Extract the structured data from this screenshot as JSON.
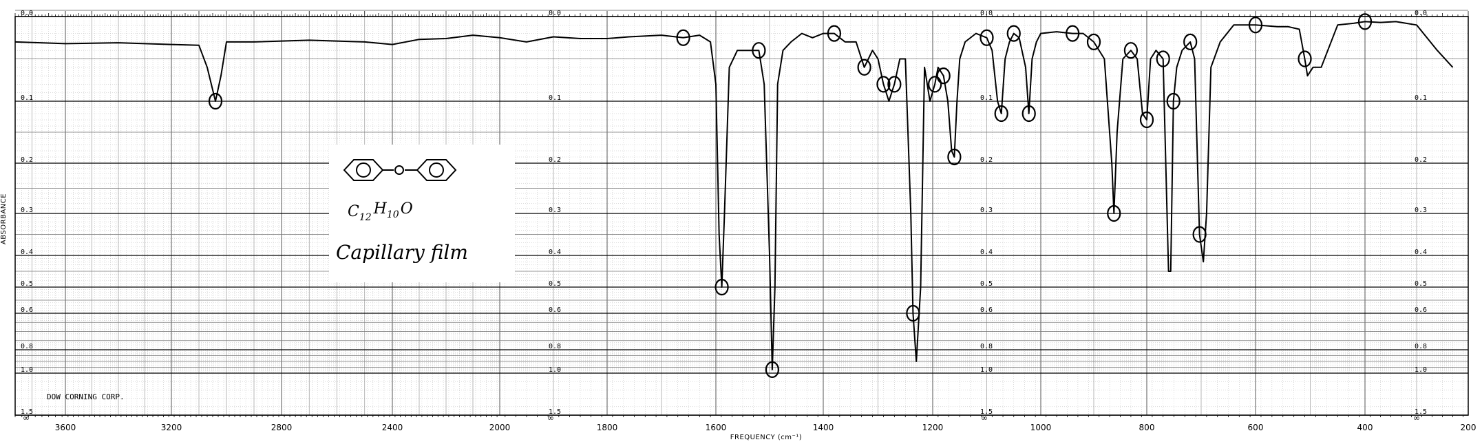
{
  "chart_data": {
    "type": "line",
    "title": "",
    "xlabel": "FREQUENCY (cm⁻¹)",
    "ylabel": "ABSORBANCE",
    "xlim": [
      3750,
      200
    ],
    "ylim": [
      0.0,
      1.5
    ],
    "x_ticks": [
      3600,
      3200,
      2800,
      2400,
      2000,
      1800,
      1600,
      1400,
      1200,
      1000,
      800,
      600,
      400,
      200
    ],
    "x_tick_labels": [
      "3600",
      "3200",
      "2800",
      "2400",
      "2000",
      "1800",
      "1600",
      "1400",
      "1200",
      "1000",
      "800",
      "600",
      "400",
      "200"
    ],
    "y_ticks": [
      0.0,
      0.1,
      0.2,
      0.3,
      0.4,
      0.5,
      0.6,
      0.8,
      1.0,
      1.5
    ],
    "y_tick_labels": [
      "0.0",
      "0.1",
      "0.2",
      "0.3",
      "0.4",
      "0.5",
      "0.6",
      "0.8",
      "1.0",
      "1.5"
    ],
    "grid": true,
    "series": [
      {
        "name": "",
        "x": [
          3750,
          3600,
          3400,
          3200,
          3100,
          3070,
          3040,
          3020,
          3000,
          2900,
          2700,
          2500,
          2400,
          2300,
          2200,
          2100,
          2000,
          1950,
          1900,
          1850,
          1800,
          1760,
          1700,
          1660,
          1630,
          1610,
          1600,
          1594,
          1589,
          1584,
          1575,
          1560,
          1520,
          1510,
          1500,
          1495,
          1490,
          1485,
          1475,
          1460,
          1440,
          1420,
          1400,
          1380,
          1360,
          1340,
          1325,
          1310,
          1300,
          1290,
          1280,
          1270,
          1260,
          1250,
          1240,
          1236,
          1230,
          1222,
          1215,
          1205,
          1196,
          1190,
          1180,
          1172,
          1165,
          1160,
          1155,
          1150,
          1140,
          1120,
          1100,
          1090,
          1080,
          1073,
          1066,
          1058,
          1050,
          1040,
          1028,
          1022,
          1016,
          1008,
          1000,
          970,
          940,
          920,
          900,
          880,
          866,
          862,
          856,
          845,
          830,
          818,
          808,
          800,
          793,
          783,
          770,
          760,
          756,
          751,
          745,
          735,
          720,
          712,
          703,
          696,
          690,
          682,
          665,
          640,
          600,
          560,
          540,
          520,
          510,
          505,
          495,
          480,
          450,
          420,
          400,
          370,
          340,
          300,
          260,
          230
        ],
        "y": [
          0.03,
          0.032,
          0.031,
          0.033,
          0.034,
          0.06,
          0.1,
          0.07,
          0.03,
          0.03,
          0.028,
          0.03,
          0.033,
          0.027,
          0.026,
          0.022,
          0.025,
          0.03,
          0.024,
          0.026,
          0.026,
          0.024,
          0.022,
          0.025,
          0.022,
          0.03,
          0.08,
          0.35,
          0.5,
          0.3,
          0.06,
          0.04,
          0.04,
          0.08,
          0.4,
          0.97,
          0.5,
          0.08,
          0.04,
          0.03,
          0.02,
          0.025,
          0.02,
          0.02,
          0.03,
          0.03,
          0.06,
          0.04,
          0.05,
          0.08,
          0.1,
          0.08,
          0.05,
          0.05,
          0.3,
          0.6,
          0.9,
          0.5,
          0.06,
          0.1,
          0.08,
          0.06,
          0.07,
          0.1,
          0.18,
          0.19,
          0.1,
          0.05,
          0.03,
          0.02,
          0.025,
          0.04,
          0.1,
          0.12,
          0.05,
          0.03,
          0.02,
          0.025,
          0.06,
          0.12,
          0.05,
          0.03,
          0.02,
          0.018,
          0.02,
          0.02,
          0.03,
          0.05,
          0.2,
          0.3,
          0.15,
          0.05,
          0.04,
          0.05,
          0.12,
          0.13,
          0.05,
          0.04,
          0.05,
          0.45,
          0.45,
          0.1,
          0.06,
          0.04,
          0.03,
          0.05,
          0.35,
          0.42,
          0.3,
          0.06,
          0.03,
          0.01,
          0.01,
          0.012,
          0.012,
          0.015,
          0.05,
          0.07,
          0.06,
          0.06,
          0.01,
          0.008,
          0.006,
          0.007,
          0.006,
          0.01,
          0.04,
          0.06
        ]
      }
    ],
    "annotations": {
      "structure": "⌬–O–⌬",
      "formula_base_c": "C",
      "formula_sub_12": "12",
      "formula_base_h": "H",
      "formula_sub_10": "10",
      "formula_base_o": "O",
      "sample_note": "Capillary film",
      "manufacturer": "DOW CORNING CORP."
    },
    "colors": {
      "line": "#000000",
      "grid_minor": "#b8b8b8",
      "grid_major": "#000000",
      "background": "#ffffff"
    }
  }
}
